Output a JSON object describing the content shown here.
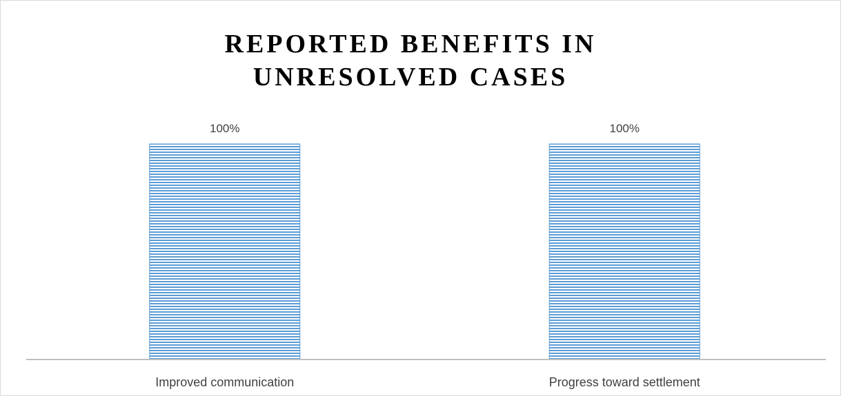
{
  "chart_data": {
    "type": "bar",
    "title_lines": [
      "REPORTED BENEFITS IN",
      "UNRESOLVED CASES"
    ],
    "categories": [
      "Improved communication",
      "Progress toward settlement"
    ],
    "values": [
      100,
      100
    ],
    "data_labels": [
      "100%",
      "100%"
    ],
    "value_unit": "%",
    "ylim": [
      0,
      100
    ],
    "xlabel": "",
    "ylabel": "",
    "grid": false,
    "legend": "none",
    "bar_color": "#5b9bd5",
    "bar_pattern": "horizontal-stripes",
    "axis_color": "#bfbfbf"
  }
}
